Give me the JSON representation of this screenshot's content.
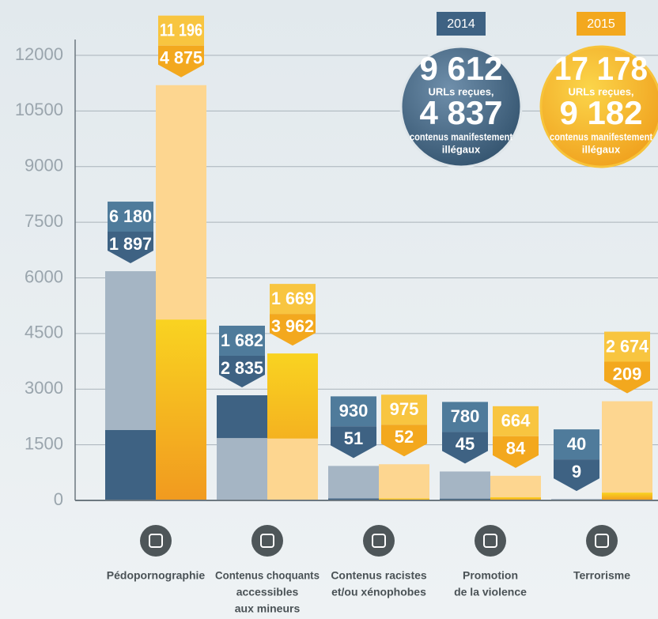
{
  "chart_data": {
    "type": "bar",
    "categories": [
      [
        "Pédopornographie"
      ],
      [
        "Contenus choquants",
        "accessibles",
        "aux mineurs"
      ],
      [
        "Contenus racistes",
        "et/ou xénophobes"
      ],
      [
        "Promotion",
        "de la violence"
      ],
      [
        "Terrorisme"
      ]
    ],
    "ylim": [
      0,
      12000
    ],
    "yticks": [
      0,
      1500,
      3000,
      4500,
      6000,
      7500,
      9000,
      10500,
      12000
    ],
    "grid": true,
    "total_text": {
      "urls": "URLs reçues,",
      "illegal": [
        "contenus manifestement",
        "illégaux"
      ]
    },
    "series": [
      {
        "name": "2014",
        "color": "#3e6283",
        "light_color": "#a5b5c4",
        "flag_top": "#4f7b9b",
        "values": [
          6180,
          1682,
          930,
          780,
          40
        ],
        "value_labels": [
          "6 180",
          "1 682",
          "930",
          "780",
          "40"
        ],
        "illegal": [
          1897,
          2835,
          51,
          45,
          9
        ],
        "illegal_labels": [
          "1 897",
          "2 835",
          "51",
          "45",
          "9"
        ],
        "total_urls": {
          "value": 9612,
          "label": "9 612"
        },
        "total_illegal": {
          "value": 4837,
          "label": "4 837"
        }
      },
      {
        "name": "2015",
        "color": "#f3a81e",
        "light_color": "#fdd690",
        "flag_top": "#f8c540",
        "values": [
          11196,
          1669,
          975,
          664,
          2674
        ],
        "value_labels": [
          "11 196",
          "1 669",
          "975",
          "664",
          "2 674"
        ],
        "illegal": [
          4875,
          3962,
          52,
          84,
          209
        ],
        "illegal_labels": [
          "4 875",
          "3 962",
          "52",
          "84",
          "209"
        ],
        "total_urls": {
          "value": 17178,
          "label": "17 178"
        },
        "total_illegal": {
          "value": 9182,
          "label": "9 182"
        }
      }
    ]
  }
}
